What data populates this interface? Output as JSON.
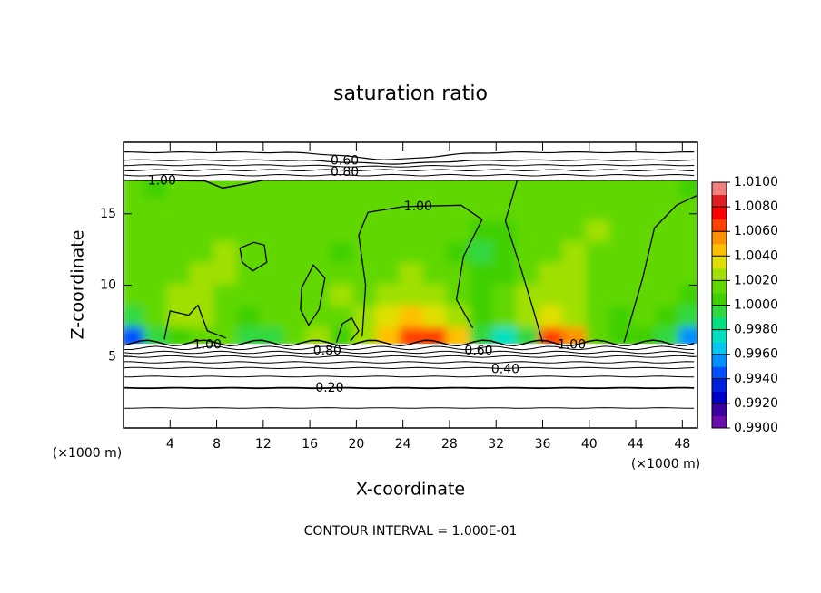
{
  "chart_data": {
    "type": "heatmap",
    "title": "saturation ratio",
    "x_label": "X-coordinate",
    "y_label": "Z-coordinate",
    "x_unit": "(×1000 m)",
    "z_unit": "(×1000 m)",
    "footer": "CONTOUR INTERVAL = 1.000E-01",
    "x": [
      1,
      3,
      5,
      7,
      9,
      11,
      13,
      15,
      17,
      19,
      21,
      23,
      25,
      27,
      29,
      31,
      33,
      35,
      37,
      39,
      41,
      43,
      45,
      47,
      49
    ],
    "y": [
      6.5,
      8,
      9.5,
      11,
      12.5,
      14,
      15.5,
      17
    ],
    "values": [
      [
        0.994,
        0.999,
        1.0,
        1.001,
        1.001,
        0.999,
        0.999,
        1.001,
        1.002,
        1.0,
        1.002,
        1.004,
        1.006,
        1.006,
        1.004,
        0.999,
        0.997,
        0.999,
        1.006,
        1.005,
        1.001,
        1.0,
        1.0,
        0.999,
        0.995
      ],
      [
        0.999,
        1.001,
        1.002,
        1.002,
        1.001,
        1.0,
        1.001,
        1.001,
        1.001,
        1.001,
        1.002,
        1.003,
        1.004,
        1.003,
        1.002,
        1.0,
        1.001,
        1.002,
        1.003,
        1.002,
        1.001,
        1.0,
        1.001,
        1.0,
        0.999
      ],
      [
        1.001,
        1.001,
        1.002,
        1.002,
        1.001,
        1.001,
        1.001,
        1.001,
        1.001,
        1.002,
        1.001,
        1.002,
        1.002,
        1.002,
        1.001,
        1.0,
        1.001,
        1.002,
        1.002,
        1.002,
        1.001,
        1.001,
        1.001,
        1.001,
        1.0
      ],
      [
        1.001,
        1.001,
        1.001,
        1.002,
        1.002,
        1.001,
        1.001,
        1.001,
        1.001,
        1.001,
        1.001,
        1.001,
        1.002,
        1.001,
        1.001,
        1.0,
        1.0,
        1.001,
        1.002,
        1.002,
        1.001,
        1.001,
        1.001,
        1.001,
        1.001
      ],
      [
        1.001,
        1.001,
        1.001,
        1.001,
        1.002,
        1.001,
        1.001,
        1.001,
        1.001,
        1.0,
        1.001,
        1.001,
        1.001,
        1.001,
        1.0,
        0.999,
        1.0,
        1.001,
        1.001,
        1.002,
        1.001,
        1.001,
        1.001,
        1.001,
        1.001
      ],
      [
        1.001,
        1.001,
        1.001,
        1.001,
        1.001,
        1.001,
        1.001,
        1.001,
        1.001,
        1.001,
        1.001,
        1.001,
        1.001,
        1.001,
        1.001,
        1.0,
        1.0,
        1.001,
        1.001,
        1.001,
        1.002,
        1.001,
        1.001,
        1.001,
        1.001
      ],
      [
        1.001,
        1.001,
        1.001,
        1.001,
        1.001,
        1.001,
        1.001,
        1.001,
        1.001,
        1.001,
        1.001,
        1.001,
        1.001,
        1.001,
        1.001,
        1.001,
        1.001,
        1.001,
        1.001,
        1.001,
        1.001,
        1.001,
        1.001,
        1.001,
        1.001
      ],
      [
        1.001,
        1.0,
        1.001,
        1.001,
        1.001,
        1.001,
        1.001,
        1.001,
        1.001,
        1.001,
        1.001,
        1.001,
        1.001,
        1.001,
        1.001,
        1.001,
        1.001,
        1.001,
        1.001,
        1.001,
        1.001,
        1.001,
        1.001,
        1.001,
        1.0
      ]
    ],
    "xlim": [
      0,
      49.3
    ],
    "ylim": [
      0,
      20
    ],
    "xticks": [
      4,
      8,
      12,
      16,
      20,
      24,
      28,
      32,
      36,
      40,
      44,
      48
    ],
    "yticks": [
      5,
      10,
      15
    ],
    "colorbar": {
      "lim": [
        0.99,
        1.01
      ],
      "ticks": [
        {
          "value": 0.99,
          "label": "0.9900"
        },
        {
          "value": 0.992,
          "label": "0.9920"
        },
        {
          "value": 0.994,
          "label": "0.9940"
        },
        {
          "value": 0.996,
          "label": "0.9960"
        },
        {
          "value": 0.998,
          "label": "0.9980"
        },
        {
          "value": 1.0,
          "label": "1.0000"
        },
        {
          "value": 1.002,
          "label": "1.0020"
        },
        {
          "value": 1.004,
          "label": "1.0040"
        },
        {
          "value": 1.006,
          "label": "1.0060"
        },
        {
          "value": 1.008,
          "label": "1.0080"
        },
        {
          "value": 1.01,
          "label": "1.0100"
        }
      ],
      "colors": [
        "#6a0dad",
        "#3a00a0",
        "#0000c8",
        "#0020e0",
        "#0050ff",
        "#0090ff",
        "#00c8f0",
        "#00e0c0",
        "#00e080",
        "#30d840",
        "#40d000",
        "#60d800",
        "#a0e000",
        "#e0e000",
        "#ffc000",
        "#ff9000",
        "#ff4000",
        "#ff0000",
        "#e02020",
        "#f08080"
      ]
    },
    "contour_labels": [
      "0.60",
      "0.80",
      "1.00",
      "1.00",
      "1.00",
      "0.80",
      "0.20",
      "0.60",
      "0.40",
      "1.00"
    ]
  }
}
